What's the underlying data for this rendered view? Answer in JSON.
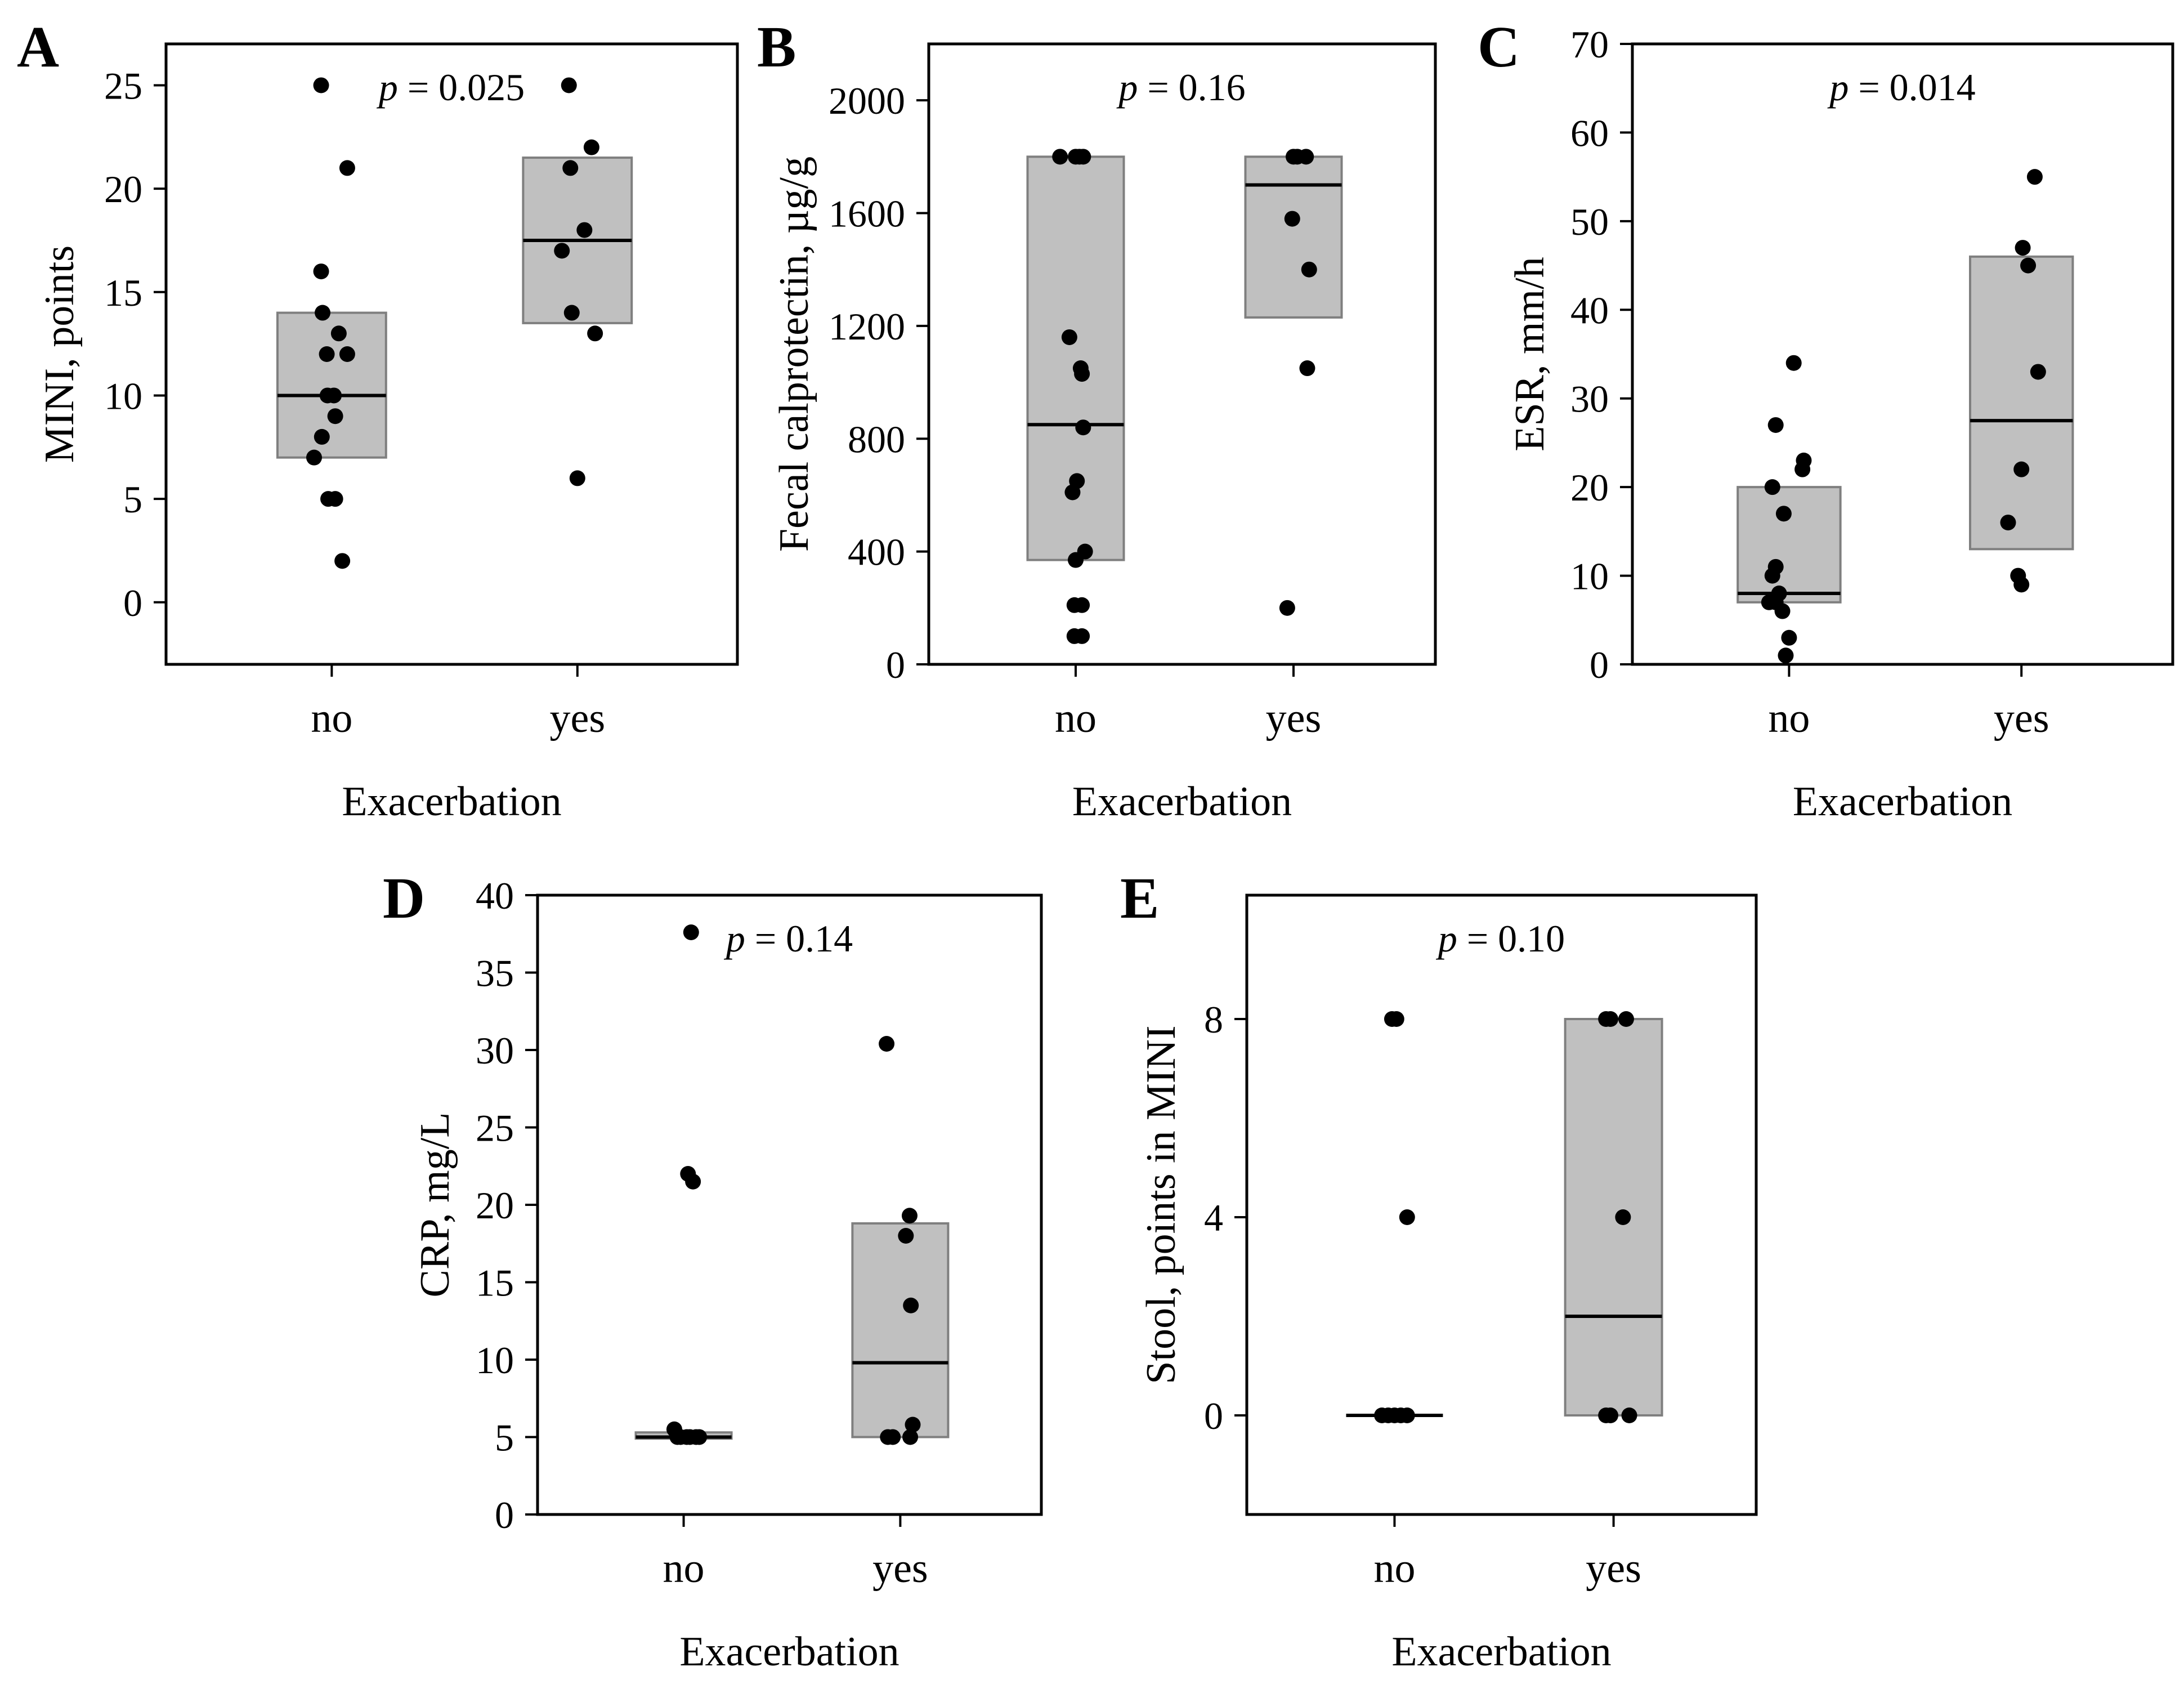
{
  "chart_data": [
    {
      "panel": "A",
      "type": "box-scatter",
      "xlabel": "Exacerbation",
      "ylabel": "MINI, points",
      "pvalue_prefix": "p",
      "pvalue_rest": " = 0.025",
      "ylim": [
        -3,
        27
      ],
      "yticks": [
        "0",
        "5",
        "10",
        "15",
        "20",
        "25"
      ],
      "ytick_values": [
        0,
        5,
        10,
        15,
        20,
        25
      ],
      "categories": [
        "no",
        "yes"
      ],
      "groups": [
        {
          "name": "no",
          "box": {
            "q1": 7,
            "median": 10,
            "q3": 14
          },
          "points": [
            [
              -0.15,
              25
            ],
            [
              0.22,
              21
            ],
            [
              -0.15,
              16
            ],
            [
              -0.13,
              14
            ],
            [
              0.1,
              13
            ],
            [
              0.22,
              12
            ],
            [
              -0.07,
              12
            ],
            [
              0.03,
              10
            ],
            [
              -0.06,
              10
            ],
            [
              0.05,
              9
            ],
            [
              -0.14,
              8
            ],
            [
              -0.25,
              7
            ],
            [
              -0.05,
              5
            ],
            [
              0.05,
              5
            ],
            [
              0.15,
              2
            ]
          ]
        },
        {
          "name": "yes",
          "box": {
            "q1": 13.5,
            "median": 17.5,
            "q3": 21.5
          },
          "points": [
            [
              -0.12,
              25
            ],
            [
              0.2,
              22
            ],
            [
              -0.1,
              21
            ],
            [
              0.1,
              18
            ],
            [
              -0.22,
              17
            ],
            [
              -0.08,
              14
            ],
            [
              0.25,
              13
            ],
            [
              0.0,
              6
            ]
          ]
        }
      ]
    },
    {
      "panel": "B",
      "type": "box-scatter",
      "xlabel": "Exacerbation",
      "ylabel": "Fecal calprotectin,  µg/g",
      "pvalue_prefix": "p",
      "pvalue_rest": " = 0.16",
      "ylim": [
        0,
        2200
      ],
      "yticks": [
        "0",
        "400",
        "800",
        "1200",
        "1600",
        "2000"
      ],
      "ytick_values": [
        0,
        400,
        800,
        1200,
        1600,
        2000
      ],
      "categories": [
        "no",
        "yes"
      ],
      "groups": [
        {
          "name": "no",
          "box": {
            "q1": 370,
            "median": 850,
            "q3": 1800
          },
          "points": [
            [
              -0.25,
              1800
            ],
            [
              0.0,
              1800
            ],
            [
              0.06,
              1800
            ],
            [
              0.12,
              1800
            ],
            [
              -0.1,
              1160
            ],
            [
              0.08,
              1050
            ],
            [
              0.1,
              1030
            ],
            [
              0.12,
              840
            ],
            [
              0.02,
              650
            ],
            [
              -0.05,
              610
            ],
            [
              0.15,
              400
            ],
            [
              0.0,
              370
            ],
            [
              -0.02,
              210
            ],
            [
              0.1,
              210
            ],
            [
              -0.02,
              100
            ],
            [
              0.1,
              100
            ]
          ]
        },
        {
          "name": "yes",
          "box": {
            "q1": 1230,
            "median": 1700,
            "q3": 1800
          },
          "points": [
            [
              0.0,
              1800
            ],
            [
              0.06,
              1800
            ],
            [
              0.2,
              1800
            ],
            [
              -0.02,
              1580
            ],
            [
              0.25,
              1400
            ],
            [
              0.22,
              1050
            ],
            [
              -0.1,
              200
            ]
          ]
        }
      ]
    },
    {
      "panel": "C",
      "type": "box-scatter",
      "xlabel": "Exacerbation",
      "ylabel": "ESR, mm/h",
      "pvalue_prefix": "p",
      "pvalue_rest": " = 0.014",
      "ylim": [
        0,
        70
      ],
      "yticks": [
        "0",
        "10",
        "20",
        "30",
        "40",
        "50",
        "60",
        "70"
      ],
      "ytick_values": [
        0,
        10,
        20,
        30,
        40,
        50,
        60,
        70
      ],
      "categories": [
        "no",
        "yes"
      ],
      "groups": [
        {
          "name": "no",
          "box": {
            "q1": 7,
            "median": 8,
            "q3": 20
          },
          "points": [
            [
              0.07,
              34
            ],
            [
              -0.2,
              27
            ],
            [
              0.22,
              23
            ],
            [
              0.2,
              22
            ],
            [
              -0.25,
              20
            ],
            [
              -0.08,
              17
            ],
            [
              -0.2,
              11
            ],
            [
              -0.25,
              10
            ],
            [
              -0.15,
              8
            ],
            [
              -0.3,
              7
            ],
            [
              -0.2,
              7
            ],
            [
              -0.1,
              6
            ],
            [
              0.0,
              3
            ],
            [
              -0.05,
              1
            ]
          ]
        },
        {
          "name": "yes",
          "box": {
            "q1": 13,
            "median": 27.5,
            "q3": 46
          },
          "points": [
            [
              0.2,
              55
            ],
            [
              0.02,
              47
            ],
            [
              0.1,
              45
            ],
            [
              0.25,
              33
            ],
            [
              0.0,
              22
            ],
            [
              -0.2,
              16
            ],
            [
              -0.05,
              10
            ],
            [
              0.0,
              9
            ]
          ]
        }
      ]
    },
    {
      "panel": "D",
      "type": "box-scatter",
      "xlabel": "Exacerbation",
      "ylabel": "CRP, mg/L",
      "pvalue_prefix": "p",
      "pvalue_rest": " = 0.14",
      "ylim": [
        0,
        40
      ],
      "yticks": [
        "0",
        "5",
        "10",
        "15",
        "20",
        "25",
        "30",
        "35",
        "40"
      ],
      "ytick_values": [
        0,
        5,
        10,
        15,
        20,
        25,
        30,
        35,
        40
      ],
      "categories": [
        "no",
        "yes"
      ],
      "groups": [
        {
          "name": "no",
          "box": {
            "q1": 4.9,
            "median": 5.0,
            "q3": 5.3
          },
          "points": [
            [
              0.12,
              37.6
            ],
            [
              0.07,
              22
            ],
            [
              0.15,
              21.5
            ],
            [
              -0.15,
              5.5
            ],
            [
              -0.05,
              5.0
            ],
            [
              0.05,
              5.0
            ],
            [
              0.1,
              5.0
            ],
            [
              0.2,
              5.0
            ],
            [
              0.25,
              5.0
            ],
            [
              -0.1,
              5.0
            ]
          ]
        },
        {
          "name": "yes",
          "box": {
            "q1": 5.0,
            "median": 9.8,
            "q3": 18.8
          },
          "points": [
            [
              -0.22,
              30.4
            ],
            [
              0.15,
              19.3
            ],
            [
              0.09,
              18
            ],
            [
              0.17,
              13.5
            ],
            [
              0.2,
              5.8
            ],
            [
              -0.2,
              5.0
            ],
            [
              -0.12,
              5.0
            ],
            [
              0.16,
              5.0
            ]
          ]
        }
      ]
    },
    {
      "panel": "E",
      "type": "box-scatter",
      "xlabel": "Exacerbation",
      "ylabel": "Stool, points in MINI",
      "pvalue_prefix": "p",
      "pvalue_rest": " = 0.10",
      "ylim": [
        -2,
        10.5
      ],
      "yticks": [
        "0",
        "4",
        "8"
      ],
      "ytick_values": [
        0,
        4,
        8
      ],
      "categories": [
        "no",
        "yes"
      ],
      "groups": [
        {
          "name": "no",
          "box": {
            "q1": 0,
            "median": 0,
            "q3": 0
          },
          "points": [
            [
              -0.04,
              8
            ],
            [
              0.03,
              8
            ],
            [
              0.2,
              4
            ],
            [
              -0.2,
              0
            ],
            [
              -0.1,
              0
            ],
            [
              0.0,
              0
            ],
            [
              0.1,
              0
            ],
            [
              0.2,
              0
            ]
          ]
        },
        {
          "name": "yes",
          "box": {
            "q1": 0,
            "median": 2,
            "q3": 8
          },
          "points": [
            [
              -0.12,
              8
            ],
            [
              -0.05,
              8
            ],
            [
              0.2,
              8
            ],
            [
              0.15,
              4
            ],
            [
              -0.05,
              0
            ],
            [
              -0.12,
              0
            ],
            [
              0.25,
              0
            ]
          ]
        }
      ]
    }
  ]
}
